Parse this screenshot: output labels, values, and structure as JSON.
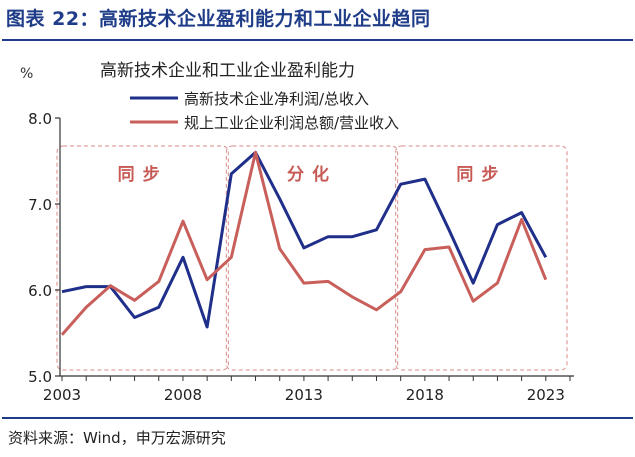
{
  "figure_title": "图表 22：高新技术企业盈利能力和工业企业趋同",
  "source": "资料来源：Wind，申万宏源研究",
  "colors": {
    "navy": "#1f3c88",
    "series1": "#1f2f8a",
    "series2": "#c95f5b",
    "zone_border": "#d98a86",
    "zone_label": "#c85a55",
    "axis": "#333333"
  },
  "chart_data": {
    "type": "line",
    "title": "高新技术企业和工业企业盈利能力",
    "ylabel": "%",
    "xlabel": "",
    "ylim": [
      5.0,
      8.0
    ],
    "xlim": [
      2003,
      2024
    ],
    "yticks": [
      "5.0",
      "6.0",
      "7.0",
      "8.0"
    ],
    "xticks": [
      "2003",
      "2008",
      "2013",
      "2018",
      "2023"
    ],
    "grid": false,
    "legend": "top",
    "series": [
      {
        "name": "高新技术企业净利润/总收入",
        "x": [
          2003,
          2004,
          2005,
          2006,
          2007,
          2008,
          2009,
          2010,
          2011,
          2012,
          2013,
          2014,
          2015,
          2016,
          2017,
          2018,
          2019,
          2020,
          2021,
          2022,
          2023
        ],
        "values": [
          5.98,
          6.04,
          6.04,
          5.68,
          5.8,
          6.38,
          5.57,
          7.35,
          7.6,
          7.06,
          6.49,
          6.62,
          6.62,
          6.7,
          7.23,
          7.29,
          6.7,
          6.08,
          6.76,
          6.9,
          6.38
        ]
      },
      {
        "name": "规上工业企业利润总额/营业收入",
        "x": [
          2003,
          2004,
          2005,
          2006,
          2007,
          2008,
          2009,
          2010,
          2011,
          2012,
          2013,
          2014,
          2015,
          2016,
          2017,
          2018,
          2019,
          2020,
          2021,
          2022,
          2023
        ],
        "values": [
          5.48,
          5.8,
          6.05,
          5.88,
          6.1,
          6.8,
          6.12,
          6.38,
          7.6,
          6.48,
          6.08,
          6.1,
          5.92,
          5.77,
          5.98,
          6.47,
          6.5,
          5.87,
          6.08,
          6.82,
          6.12
        ]
      }
    ],
    "annotations": [
      {
        "label": "同步",
        "from": 2003,
        "to": 2010
      },
      {
        "label": "分化",
        "from": 2010,
        "to": 2017
      },
      {
        "label": "同步",
        "from": 2017,
        "to": 2024
      }
    ]
  }
}
